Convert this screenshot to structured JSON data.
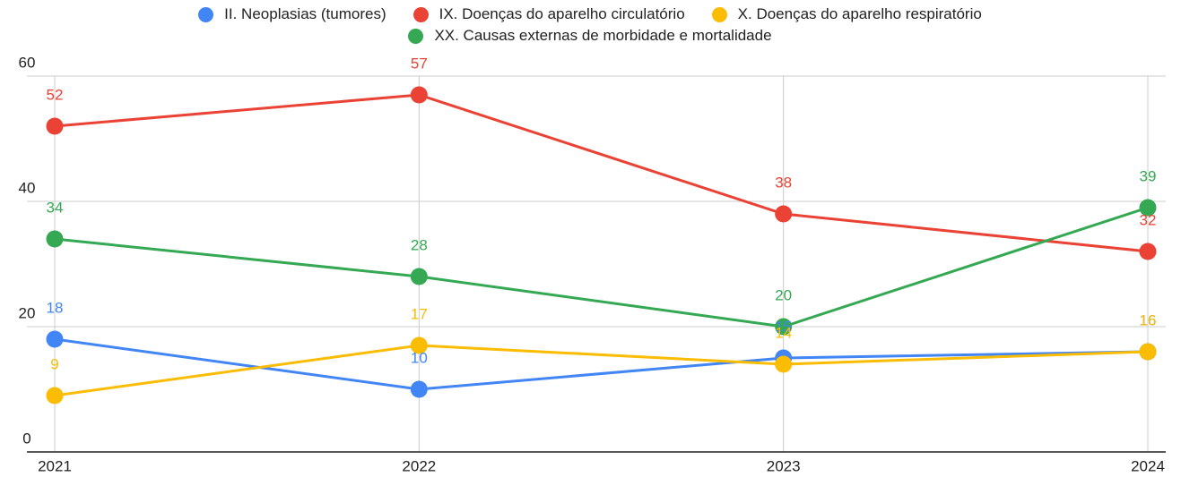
{
  "chart_data": {
    "type": "line",
    "categories": [
      "2021",
      "2022",
      "2023",
      "2024"
    ],
    "series": [
      {
        "name": "II. Neoplasias (tumores)",
        "color": "#4285f4",
        "values": [
          18,
          10,
          15,
          16
        ]
      },
      {
        "name": "IX. Doenças do aparelho circulatório",
        "color": "#ea4335",
        "values": [
          52,
          57,
          38,
          32
        ]
      },
      {
        "name": "X. Doenças do aparelho respiratório",
        "color": "#fbbc04",
        "values": [
          9,
          17,
          14,
          16
        ]
      },
      {
        "name": "XX. Causas externas de morbidade e mortalidade",
        "color": "#34a853",
        "values": [
          34,
          28,
          20,
          39
        ]
      }
    ],
    "ylim": [
      0,
      60
    ],
    "yticks": [
      0,
      20,
      40,
      60
    ],
    "grid": true
  }
}
